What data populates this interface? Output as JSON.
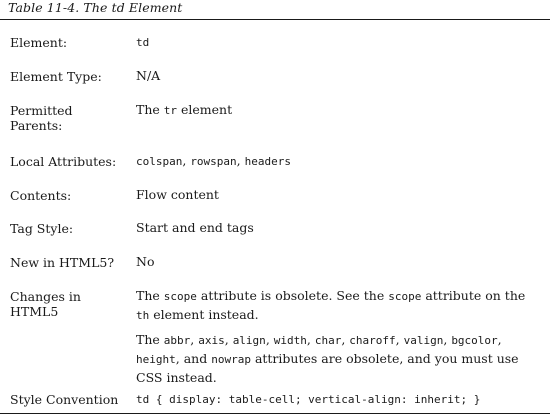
{
  "caption": "Table 11-4. The td Element",
  "rows": [
    {
      "key": "Element:",
      "value": "td"
    },
    {
      "key": "Element Type:",
      "value": "N/A"
    },
    {
      "key": "Permitted Parents:",
      "value_prefix": "The",
      "value_code": "tr",
      "value_suffix": "element"
    },
    {
      "key": "Local Attributes:",
      "codes": [
        "colspan",
        "rowspan",
        "headers"
      ]
    },
    {
      "key": "Contents:",
      "value": "Flow content"
    },
    {
      "key": "Tag Style:",
      "value": "Start and end tags"
    },
    {
      "key": "New in HTML5?",
      "value": "No"
    },
    {
      "key": "Changes in HTML5",
      "p1": {
        "t1": "The",
        "c1": "scope",
        "t2": "attribute is obsolete. See the",
        "c2": "scope",
        "t3": "attribute on the",
        "c3": "th",
        "t4": "element instead."
      },
      "p2": {
        "t1": "The",
        "codes": [
          "abbr",
          "axis",
          "align",
          "width",
          "char",
          "charoff",
          "valign",
          "bgcolor",
          "height"
        ],
        "and": "and",
        "last": "nowrap",
        "t2": "attributes are obsolete, and you must use CSS instead."
      }
    },
    {
      "key": "Style Convention",
      "value": "td { display: table-cell; vertical-align: inherit; }"
    }
  ]
}
